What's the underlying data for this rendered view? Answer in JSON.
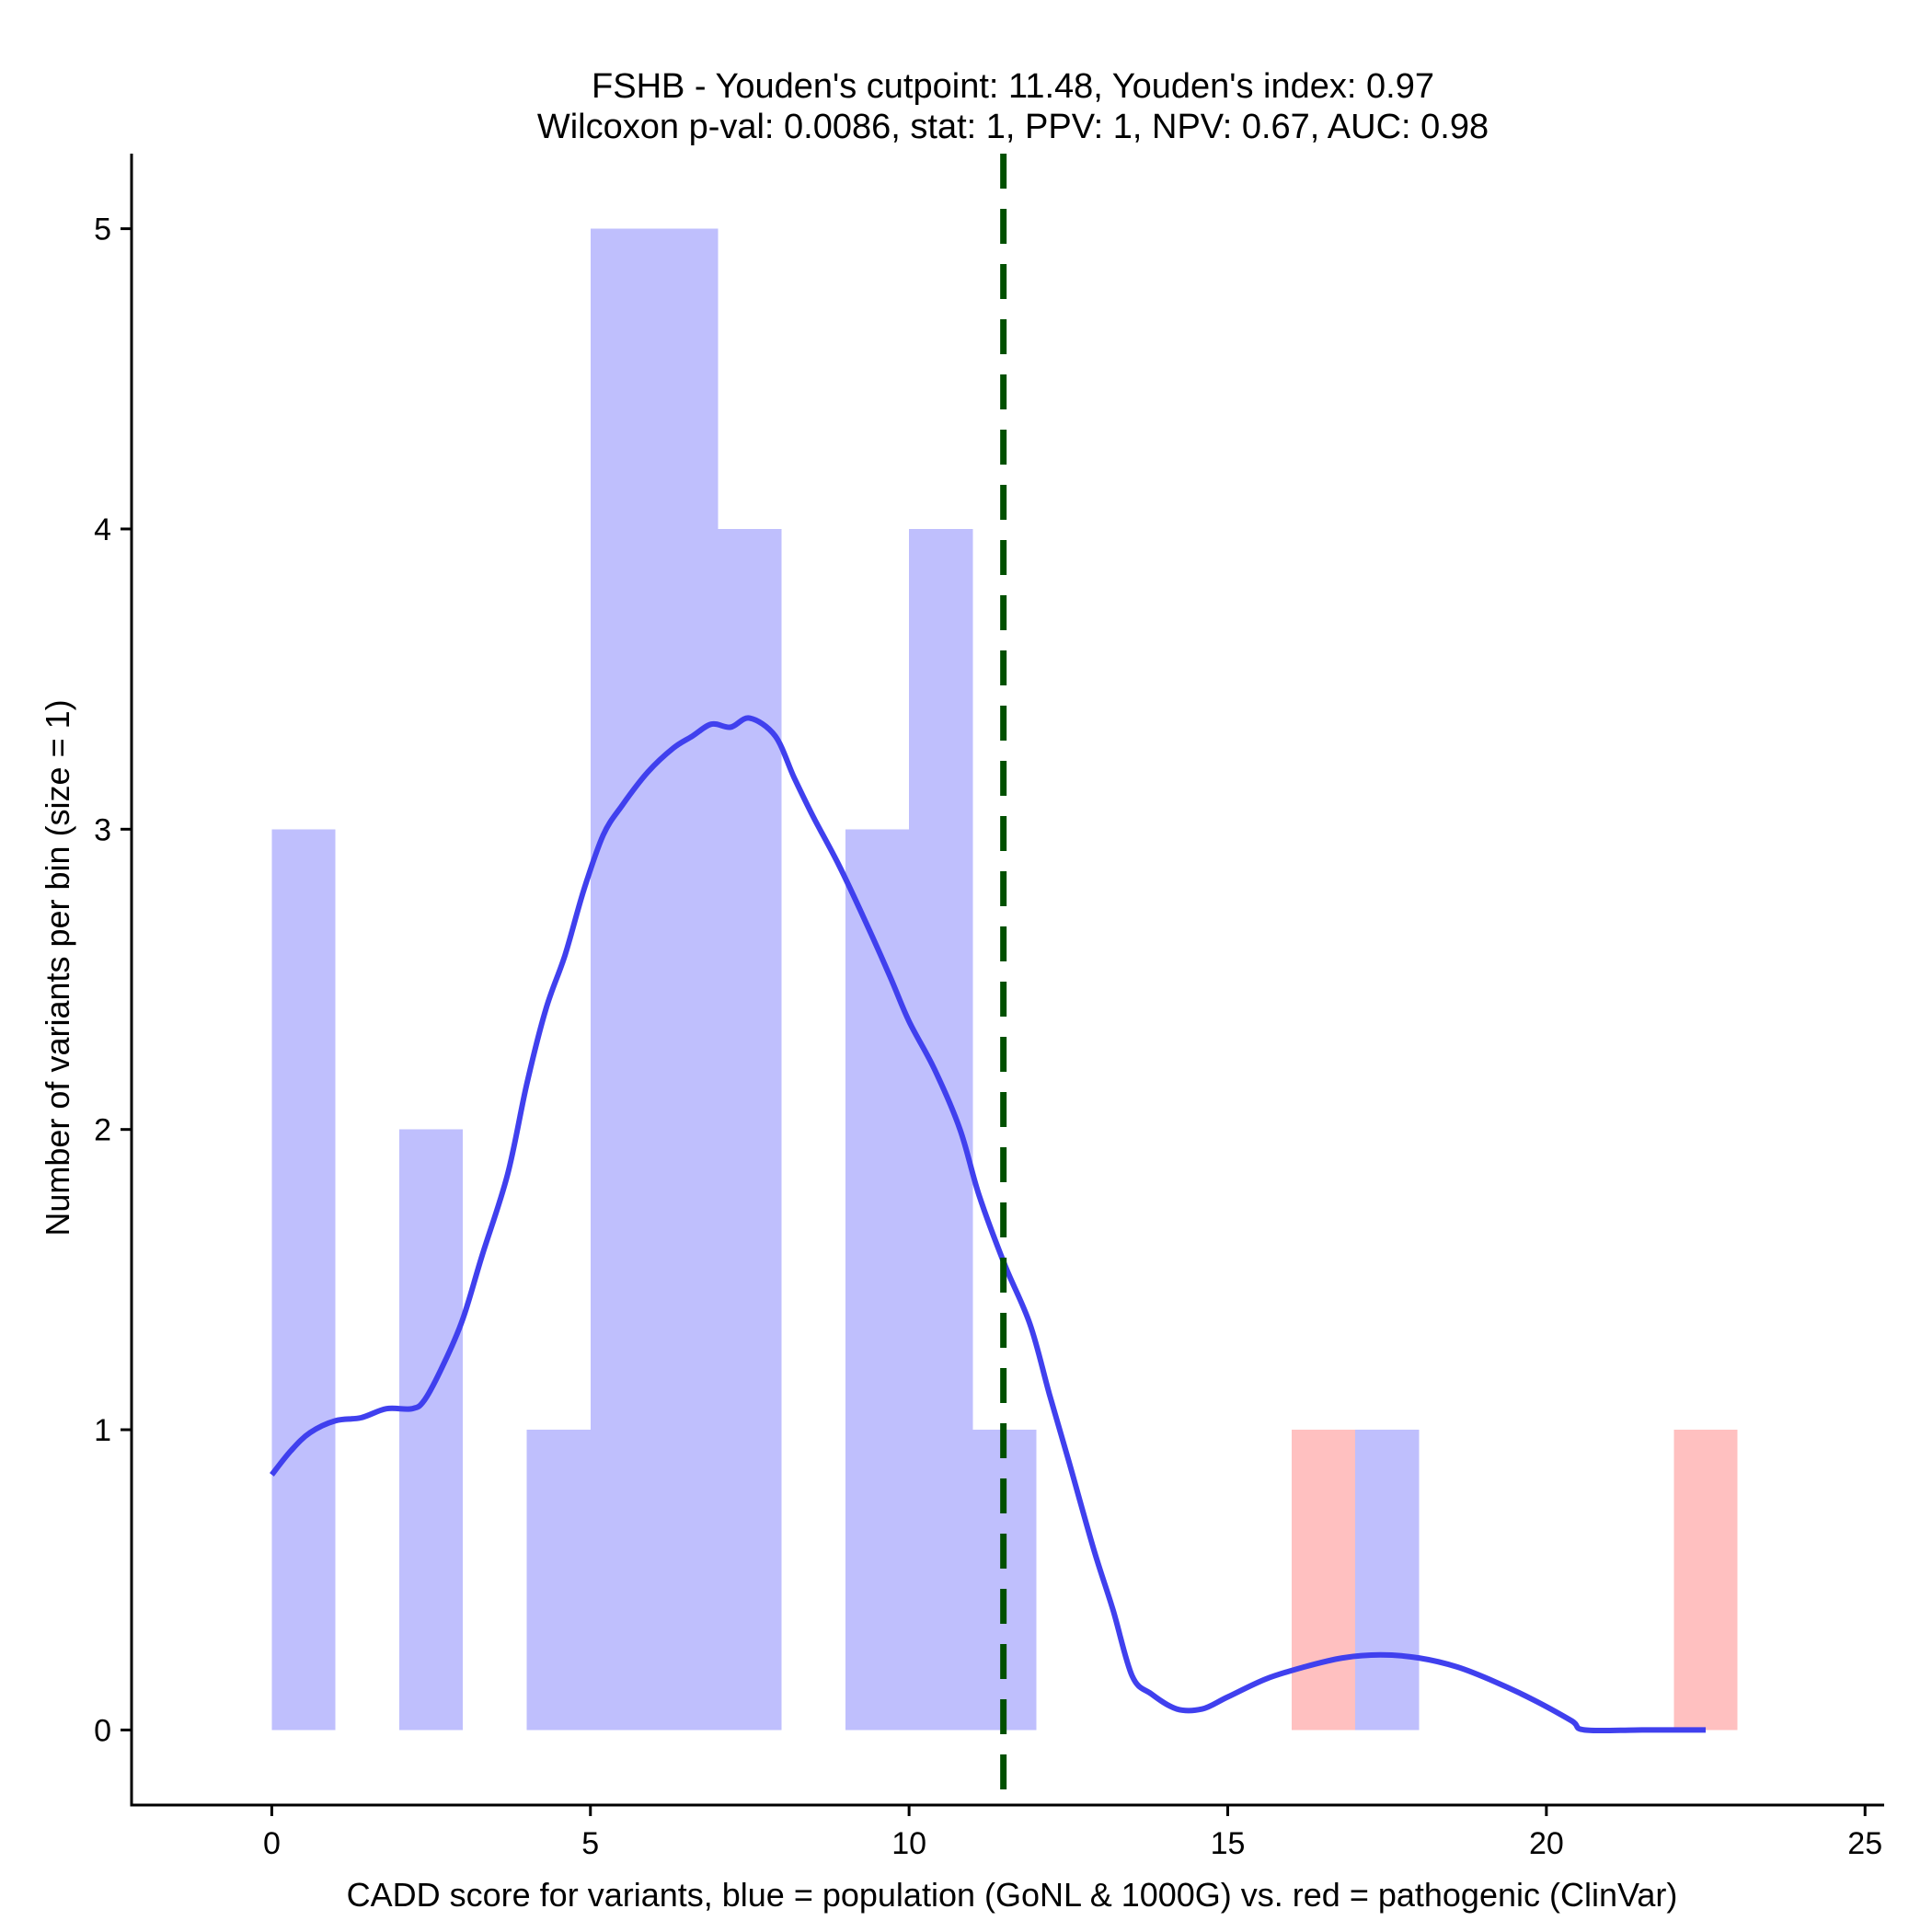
{
  "chart_data": {
    "type": "bar",
    "title_line1": "FSHB - Youden's cutpoint: 11.48, Youden's index: 0.97",
    "title_line2": "Wilcoxon p-val: 0.0086, stat: 1, PPV: 1, NPV: 0.67, AUC: 0.98",
    "xlabel": "CADD score for variants, blue = population (GoNL & 1000G) vs. red = pathogenic (ClinVar)",
    "ylabel": "Number of variants per bin (size = 1)",
    "xlim": [
      -2.2,
      25.3
    ],
    "ylim": [
      -0.25,
      5.25
    ],
    "x_ticks": [
      0,
      5,
      10,
      15,
      20,
      25
    ],
    "y_ticks": [
      0,
      1,
      2,
      3,
      4,
      5
    ],
    "bin_size": 1,
    "series": [
      {
        "name": "population (GoNL & 1000G)",
        "color": "#bfbffd",
        "bins": [
          {
            "start": 0,
            "count": 3
          },
          {
            "start": 2,
            "count": 2
          },
          {
            "start": 4,
            "count": 1
          },
          {
            "start": 5,
            "count": 5
          },
          {
            "start": 6,
            "count": 5
          },
          {
            "start": 7,
            "count": 4
          },
          {
            "start": 9,
            "count": 3
          },
          {
            "start": 10,
            "count": 4
          },
          {
            "start": 11,
            "count": 1
          },
          {
            "start": 17,
            "count": 1
          }
        ]
      },
      {
        "name": "pathogenic (ClinVar)",
        "color": "#ffc0c0",
        "bins": [
          {
            "start": 16,
            "count": 1
          },
          {
            "start": 22,
            "count": 1
          }
        ]
      }
    ],
    "density_curve": {
      "color": "#4040ee",
      "points": [
        [
          0.0,
          0.85
        ],
        [
          0.3,
          0.93
        ],
        [
          0.6,
          0.99
        ],
        [
          1.0,
          1.03
        ],
        [
          1.4,
          1.04
        ],
        [
          1.8,
          1.07
        ],
        [
          2.2,
          1.07
        ],
        [
          2.4,
          1.1
        ],
        [
          2.7,
          1.22
        ],
        [
          3.0,
          1.37
        ],
        [
          3.3,
          1.58
        ],
        [
          3.7,
          1.85
        ],
        [
          4.0,
          2.15
        ],
        [
          4.3,
          2.4
        ],
        [
          4.6,
          2.58
        ],
        [
          4.9,
          2.8
        ],
        [
          5.2,
          2.98
        ],
        [
          5.5,
          3.08
        ],
        [
          5.9,
          3.19
        ],
        [
          6.3,
          3.27
        ],
        [
          6.6,
          3.31
        ],
        [
          6.9,
          3.35
        ],
        [
          7.2,
          3.34
        ],
        [
          7.5,
          3.37
        ],
        [
          7.9,
          3.31
        ],
        [
          8.2,
          3.17
        ],
        [
          8.5,
          3.04
        ],
        [
          8.9,
          2.88
        ],
        [
          9.3,
          2.7
        ],
        [
          9.7,
          2.51
        ],
        [
          10.0,
          2.36
        ],
        [
          10.4,
          2.2
        ],
        [
          10.8,
          2.0
        ],
        [
          11.1,
          1.78
        ],
        [
          11.5,
          1.55
        ],
        [
          11.9,
          1.35
        ],
        [
          12.2,
          1.12
        ],
        [
          12.5,
          0.9
        ],
        [
          12.9,
          0.6
        ],
        [
          13.2,
          0.4
        ],
        [
          13.5,
          0.18
        ],
        [
          13.8,
          0.12
        ],
        [
          14.2,
          0.07
        ],
        [
          14.6,
          0.07
        ],
        [
          15.0,
          0.11
        ],
        [
          15.6,
          0.17
        ],
        [
          16.2,
          0.21
        ],
        [
          16.8,
          0.24
        ],
        [
          17.4,
          0.25
        ],
        [
          18.0,
          0.24
        ],
        [
          18.6,
          0.21
        ],
        [
          19.2,
          0.16
        ],
        [
          19.8,
          0.1
        ],
        [
          20.4,
          0.03
        ],
        [
          20.6,
          0.0
        ],
        [
          21.5,
          0.0
        ],
        [
          22.5,
          0.0
        ]
      ]
    },
    "cutpoint": {
      "x": 11.48,
      "color": "#005000"
    },
    "axis_color": "#000000"
  }
}
